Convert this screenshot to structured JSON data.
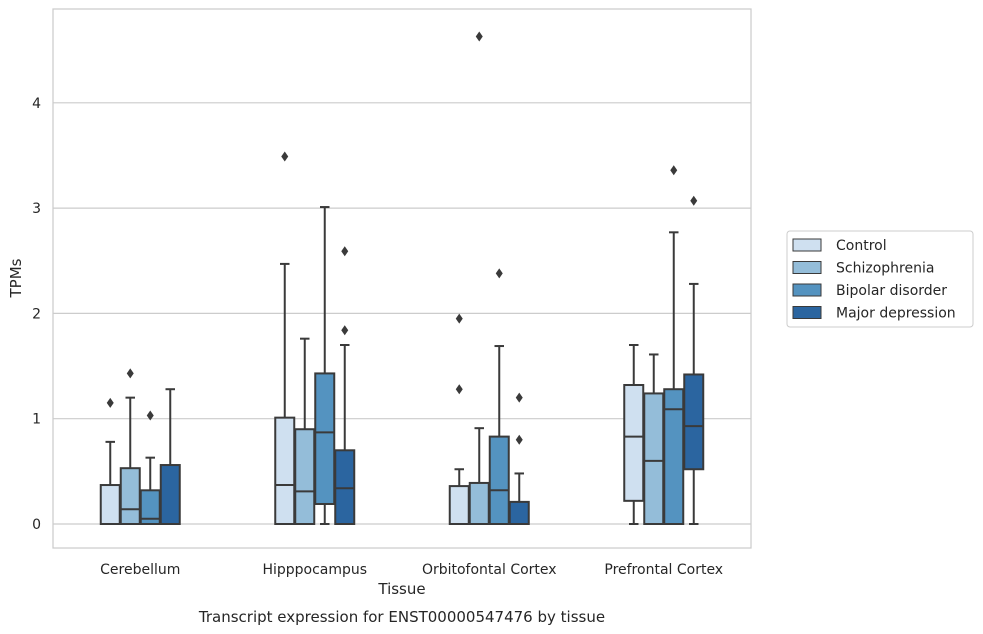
{
  "caption": "Transcript expression for ENST00000547476 by tissue",
  "chart_data": {
    "type": "box",
    "title": "",
    "xlabel": "Tissue",
    "ylabel": "TPMs",
    "categories": [
      "Cerebellum",
      "Hipppocampus",
      "Orbitofontal Cortex",
      "Prefrontal Cortex"
    ],
    "ylim": [
      -0.22,
      4.9
    ],
    "yticks": [
      0,
      1,
      2,
      3,
      4
    ],
    "grid": "horizontal",
    "legend_position": "right",
    "series": [
      {
        "name": "Control",
        "color": "#cfe0f0",
        "boxes": [
          {
            "q1": 0.0,
            "median": 0.0,
            "q3": 0.37,
            "whisker_low": 0.0,
            "whisker_high": 0.78,
            "outliers": [
              1.15
            ]
          },
          {
            "q1": 0.0,
            "median": 0.37,
            "q3": 1.01,
            "whisker_low": 0.0,
            "whisker_high": 2.47,
            "outliers": [
              3.49
            ]
          },
          {
            "q1": 0.0,
            "median": 0.0,
            "q3": 0.36,
            "whisker_low": 0.0,
            "whisker_high": 0.52,
            "outliers": [
              1.28,
              1.95
            ]
          },
          {
            "q1": 0.22,
            "median": 0.83,
            "q3": 1.32,
            "whisker_low": 0.0,
            "whisker_high": 1.7,
            "outliers": []
          }
        ]
      },
      {
        "name": "Schizophrenia",
        "color": "#94bdd9",
        "boxes": [
          {
            "q1": 0.0,
            "median": 0.14,
            "q3": 0.53,
            "whisker_low": 0.0,
            "whisker_high": 1.2,
            "outliers": [
              1.43
            ]
          },
          {
            "q1": 0.0,
            "median": 0.31,
            "q3": 0.9,
            "whisker_low": 0.0,
            "whisker_high": 1.76,
            "outliers": []
          },
          {
            "q1": 0.0,
            "median": 0.0,
            "q3": 0.39,
            "whisker_low": 0.0,
            "whisker_high": 0.91,
            "outliers": [
              4.63
            ]
          },
          {
            "q1": 0.0,
            "median": 0.6,
            "q3": 1.24,
            "whisker_low": 0.0,
            "whisker_high": 1.61,
            "outliers": []
          }
        ]
      },
      {
        "name": "Bipolar disorder",
        "color": "#5493c0",
        "boxes": [
          {
            "q1": 0.0,
            "median": 0.05,
            "q3": 0.32,
            "whisker_low": 0.0,
            "whisker_high": 0.63,
            "outliers": [
              1.03
            ]
          },
          {
            "q1": 0.19,
            "median": 0.87,
            "q3": 1.43,
            "whisker_low": 0.0,
            "whisker_high": 3.01,
            "outliers": []
          },
          {
            "q1": 0.0,
            "median": 0.32,
            "q3": 0.83,
            "whisker_low": 0.0,
            "whisker_high": 1.69,
            "outliers": [
              2.38
            ]
          },
          {
            "q1": 0.0,
            "median": 1.09,
            "q3": 1.28,
            "whisker_low": 0.0,
            "whisker_high": 2.77,
            "outliers": [
              3.36
            ]
          }
        ]
      },
      {
        "name": "Major depression",
        "color": "#2b65a0",
        "boxes": [
          {
            "q1": 0.0,
            "median": 0.0,
            "q3": 0.56,
            "whisker_low": 0.0,
            "whisker_high": 1.28,
            "outliers": []
          },
          {
            "q1": 0.0,
            "median": 0.34,
            "q3": 0.7,
            "whisker_low": 0.0,
            "whisker_high": 1.7,
            "outliers": [
              1.84,
              2.59
            ]
          },
          {
            "q1": 0.0,
            "median": 0.0,
            "q3": 0.21,
            "whisker_low": 0.0,
            "whisker_high": 0.48,
            "outliers": [
              0.8,
              1.2
            ]
          },
          {
            "q1": 0.52,
            "median": 0.93,
            "q3": 1.42,
            "whisker_low": 0.0,
            "whisker_high": 2.28,
            "outliers": [
              3.07
            ]
          }
        ]
      }
    ]
  }
}
